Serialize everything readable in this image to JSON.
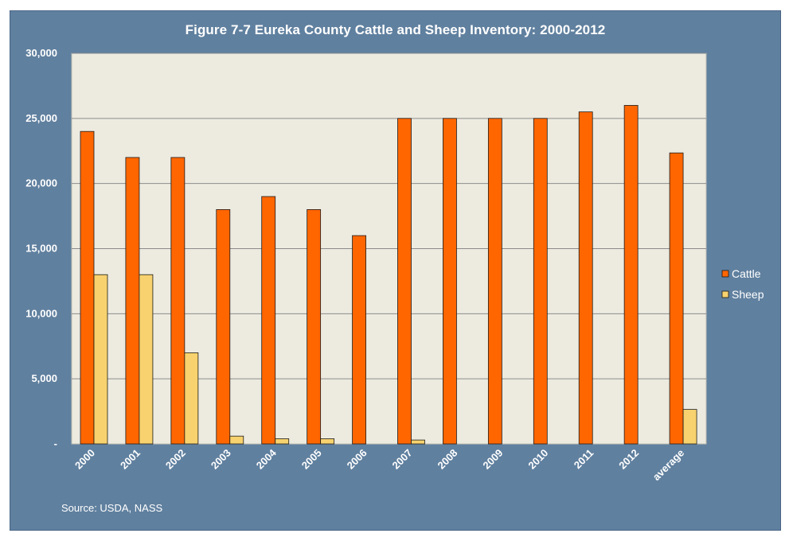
{
  "source": "Source: USDA, NASS",
  "colors": {
    "frame": "#60809f",
    "plot_bg": "#edebe0",
    "cattle": "#ff6600",
    "sheep": "#f7d26e",
    "grid": "#8c8c8c"
  },
  "chart_data": {
    "type": "bar",
    "title": "Figure 7-7 Eureka County Cattle and Sheep Inventory: 2000-2012",
    "categories": [
      "2000",
      "2001",
      "2002",
      "2003",
      "2004",
      "2005",
      "2006",
      "2007",
      "2008",
      "2009",
      "2010",
      "2011",
      "2012",
      "average"
    ],
    "series": [
      {
        "name": "Cattle",
        "values": [
          24000,
          22000,
          22000,
          18000,
          19000,
          18000,
          16000,
          25000,
          25000,
          25000,
          25000,
          25500,
          26000,
          22350
        ]
      },
      {
        "name": "Sheep",
        "values": [
          13000,
          13000,
          7000,
          600,
          400,
          400,
          0,
          300,
          0,
          0,
          0,
          0,
          0,
          2650
        ]
      }
    ],
    "ylim": [
      0,
      30000
    ],
    "yticks": [
      0,
      5000,
      10000,
      15000,
      20000,
      25000,
      30000
    ],
    "ytick_labels": [
      "-",
      "5,000",
      "10,000",
      "15,000",
      "20,000",
      "25,000",
      "30,000"
    ],
    "grid": true,
    "legend": "right"
  }
}
